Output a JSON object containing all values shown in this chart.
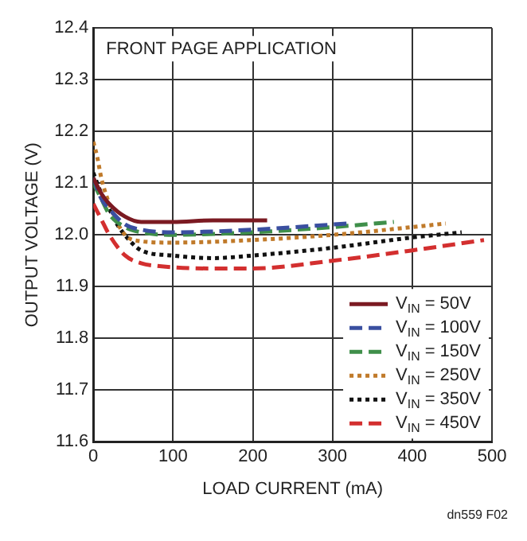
{
  "chart_data": {
    "type": "line",
    "xlabel": "LOAD CURRENT (mA)",
    "ylabel": "OUTPUT VOLTAGE (V)",
    "annotations": [
      "FRONT PAGE APPLICATION",
      "dn559 F02"
    ],
    "xlim": [
      0,
      500
    ],
    "xticks": [
      0,
      100,
      200,
      300,
      400,
      500
    ],
    "ylim": [
      11.6,
      12.4
    ],
    "yticks": [
      11.6,
      11.7,
      11.8,
      11.9,
      {
        "value": 12,
        "label": "12.0"
      },
      12.1,
      12.2,
      12.3,
      12.4
    ],
    "grid": true,
    "legend": "bottom right",
    "marker": "none",
    "series": [
      {
        "name": "V$_{IN}$ = 50V",
        "color": "#7b1a22",
        "line_style": "solid",
        "x": [
          0,
          10,
          20,
          40,
          60,
          100,
          150,
          218
        ],
        "values": [
          12.11,
          12.08,
          12.06,
          12.035,
          12.025,
          12.025,
          12.028,
          12.028
        ]
      },
      {
        "name": "V$_{IN}$ = 100V",
        "color": "#3a4fa0",
        "line_style": "dashed",
        "x": [
          0,
          10,
          20,
          40,
          60,
          100,
          200,
          300,
          320
        ],
        "values": [
          12.11,
          12.07,
          12.05,
          12.02,
          12.01,
          12.005,
          12.01,
          12.02,
          12.022
        ]
      },
      {
        "name": "V$_{IN}$ = 150V",
        "color": "#3f8f4a",
        "line_style": "dashed",
        "x": [
          0,
          10,
          20,
          40,
          60,
          100,
          200,
          300,
          377
        ],
        "values": [
          12.1,
          12.07,
          12.04,
          12.015,
          12.005,
          12.0,
          12.005,
          12.015,
          12.025
        ]
      },
      {
        "name": "V$_{IN}$ = 250V",
        "color": "#c07a2a",
        "line_style": "dotted",
        "x": [
          0,
          5,
          10,
          20,
          35,
          50,
          100,
          200,
          300,
          400,
          442
        ],
        "values": [
          12.18,
          12.15,
          12.11,
          12.06,
          12.01,
          11.99,
          11.985,
          11.99,
          12.0,
          12.015,
          12.022
        ]
      },
      {
        "name": "V$_{IN}$ = 350V",
        "color": "#111111",
        "line_style": "dotted",
        "x": [
          0,
          10,
          20,
          30,
          45,
          60,
          100,
          150,
          200,
          300,
          400,
          462
        ],
        "values": [
          12.12,
          12.08,
          12.05,
          12.02,
          11.99,
          11.97,
          11.96,
          11.955,
          11.96,
          11.975,
          11.995,
          12.005
        ]
      },
      {
        "name": "V$_{IN}$ = 450V",
        "color": "#d32f2f",
        "line_style": "dashed",
        "x": [
          0,
          10,
          20,
          40,
          60,
          80,
          150,
          200,
          300,
          400,
          490
        ],
        "values": [
          12.06,
          12.03,
          12.0,
          11.96,
          11.945,
          11.94,
          11.935,
          11.935,
          11.95,
          11.97,
          11.99
        ]
      }
    ]
  }
}
